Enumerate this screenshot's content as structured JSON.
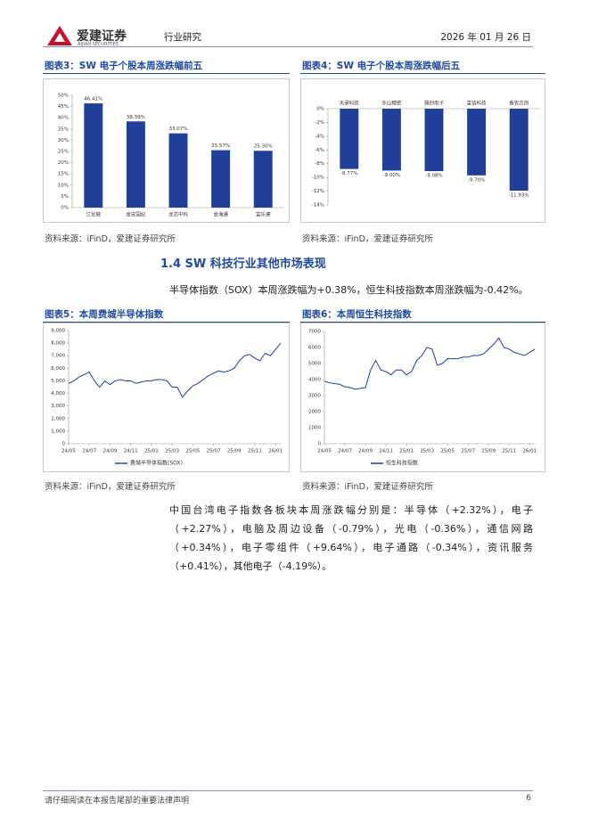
{
  "header": {
    "brand": "爱建证券",
    "brand_en": "AIJIAN SECURITIES",
    "category": "行业研究",
    "date": "2026 年 01 月 26 日"
  },
  "chart_data": [
    {
      "type": "bar",
      "title": "图表3：SW 电子个股本周涨跌幅前五",
      "note": "资料来源：iFinD，爱建证券研究所",
      "categories": [
        "江化微",
        "金安国纪",
        "龙芯中科",
        "金海通",
        "富乐德"
      ],
      "values": [
        46.41,
        38.39,
        33.07,
        25.57,
        25.3
      ],
      "value_labels": [
        "46.41%",
        "38.39%",
        "33.07%",
        "25.57%",
        "25.30%"
      ],
      "color": "#1f3f9a",
      "ylim": [
        0,
        50
      ],
      "yticks": [
        {
          "value": 0,
          "label": "0%"
        },
        {
          "value": 5,
          "label": "5%"
        },
        {
          "value": 10,
          "label": "10%"
        },
        {
          "value": 15,
          "label": "15%"
        },
        {
          "value": 20,
          "label": "20%"
        },
        {
          "value": 25,
          "label": "25%"
        },
        {
          "value": 30,
          "label": "30%"
        },
        {
          "value": 35,
          "label": "35%"
        },
        {
          "value": 40,
          "label": "40%"
        },
        {
          "value": 45,
          "label": "45%"
        },
        {
          "value": 50,
          "label": "50%"
        }
      ],
      "grid": false
    },
    {
      "type": "bar",
      "title": "图表4：SW 电子个股本周涨跌幅后五",
      "note": "资料来源：iFinD，爱建证券研究所",
      "categories": [
        "天承科技",
        "东山精密",
        "雅创电子",
        "富信科技",
        "香农芯创"
      ],
      "values": [
        -8.77,
        -9.0,
        -9.08,
        -9.7,
        -11.93
      ],
      "value_labels": [
        "-8.77%",
        "-9.00%",
        "-9.08%",
        "-9.70%",
        "-11.93%"
      ],
      "color": "#1f3f9a",
      "ylim": [
        -14,
        0
      ],
      "yticks": [
        {
          "value": 0,
          "label": "0%"
        },
        {
          "value": -2,
          "label": "-2%"
        },
        {
          "value": -4,
          "label": "-4%"
        },
        {
          "value": -6,
          "label": "-6%"
        },
        {
          "value": -8,
          "label": "-8%"
        },
        {
          "value": -10,
          "label": "-10%"
        },
        {
          "value": -12,
          "label": "-12%"
        },
        {
          "value": -14,
          "label": "-14%"
        }
      ],
      "grid": false
    },
    {
      "type": "line",
      "title": "图表5：本周费城半导体指数",
      "note": "资料来源：iFinD，爱建证券研究所",
      "categories": [
        "24/05",
        null,
        null,
        null,
        "24/07",
        null,
        null,
        null,
        "24/09",
        null,
        null,
        null,
        "24/11",
        null,
        null,
        null,
        "25/01",
        null,
        null,
        null,
        "25/03",
        null,
        null,
        null,
        "25/05",
        null,
        null,
        null,
        "25/07",
        null,
        null,
        null,
        "25/09",
        null,
        null,
        null,
        "25/11",
        null,
        null,
        null,
        "26/01",
        null
      ],
      "series": [
        {
          "name": "费城半导体指数(SOX)",
          "color": "#1f3f9a",
          "values": [
            4800,
            5000,
            5300,
            5500,
            5700,
            5000,
            4500,
            5000,
            4700,
            5000,
            5100,
            5000,
            5000,
            4800,
            4900,
            5000,
            5000,
            5100,
            5100,
            5000,
            4500,
            4500,
            3700,
            4200,
            4600,
            4800,
            5100,
            5400,
            5600,
            5800,
            5700,
            5800,
            6000,
            6600,
            7000,
            7100,
            6800,
            6600,
            7200,
            7000,
            7500,
            8000
          ]
        }
      ],
      "ylim": [
        0,
        9000
      ],
      "yticks": [
        0,
        {
          "value": 1000,
          "label": "1,000"
        },
        {
          "value": 2000,
          "label": "2,000"
        },
        {
          "value": 3000,
          "label": "3,000"
        },
        {
          "value": 4000,
          "label": "4,000"
        },
        {
          "value": 5000,
          "label": "5,000"
        },
        {
          "value": 6000,
          "label": "6,000"
        },
        {
          "value": 7000,
          "label": "7,000"
        },
        {
          "value": 8000,
          "label": "8,000"
        },
        {
          "value": 9000,
          "label": "9,000"
        }
      ],
      "grid": false
    },
    {
      "type": "line",
      "title": "图表6：本周恒生科技指数",
      "note": "资料来源：iFinD，爱建证券研究所",
      "categories": [
        "24/05",
        null,
        null,
        null,
        "24/07",
        null,
        null,
        null,
        "24/09",
        null,
        null,
        null,
        "24/11",
        null,
        null,
        null,
        "25/01",
        null,
        null,
        null,
        "25/03",
        null,
        null,
        null,
        "25/05",
        null,
        null,
        null,
        "25/07",
        null,
        null,
        null,
        "25/09",
        null,
        null,
        null,
        "25/11",
        null,
        null,
        null,
        "26/01",
        null
      ],
      "series": [
        {
          "name": "恒生科技指数",
          "color": "#1f3f9a",
          "values": [
            3900,
            3800,
            3750,
            3700,
            3550,
            3500,
            3400,
            3450,
            3500,
            4600,
            5200,
            4600,
            4500,
            4300,
            4600,
            4600,
            4300,
            4500,
            5200,
            5500,
            6000,
            5900,
            4900,
            5000,
            5300,
            5300,
            5300,
            5400,
            5400,
            5500,
            5500,
            5600,
            5900,
            6200,
            6600,
            6000,
            5900,
            5700,
            5600,
            5500,
            5700,
            5900
          ]
        }
      ],
      "ylim": [
        0,
        7000
      ],
      "yticks": [
        0,
        1000,
        2000,
        3000,
        4000,
        5000,
        6000,
        7000
      ],
      "grid": false
    }
  ],
  "section_title": "1.4 SW 科技行业其他市场表现",
  "paragraphs": [
    "半导体指数（SOX）本周涨跌幅为+0.38%，恒生科技指数本周涨跌幅为-0.42%。",
    "中国台湾电子指数各板块本周涨跌幅分别是：半导体（+2.32%），电子（+2.27%），电脑及周边设备（-0.79%），光电（-0.36%），通信网路（+0.34%），电子零组件（+9.64%），电子通路（-0.34%），资讯服务（+0.41%），其他电子（-4.19%）。"
  ],
  "footer": {
    "disclaimer": "请仔细阅读在本报告尾部的重要法律声明",
    "page": "6"
  }
}
